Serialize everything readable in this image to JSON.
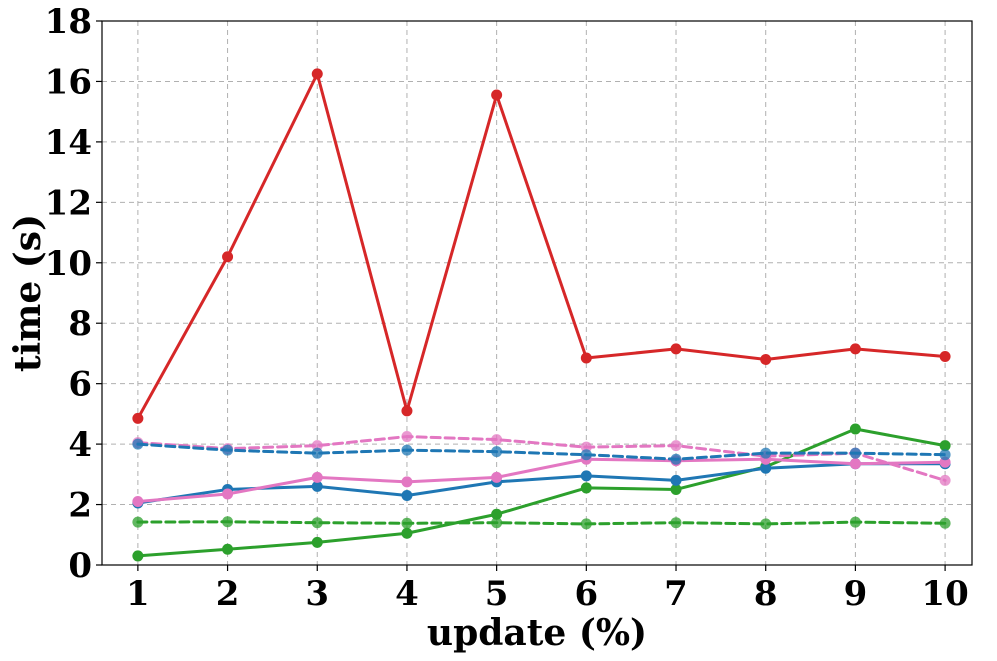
{
  "chart_data": {
    "type": "line",
    "title": "",
    "xlabel": "update (%)",
    "ylabel": "time (s)",
    "x": [
      1,
      2,
      3,
      4,
      5,
      6,
      7,
      8,
      9,
      10
    ],
    "xlim": [
      0.6,
      10.3
    ],
    "ylim": [
      0,
      18
    ],
    "yticks": [
      0,
      2,
      4,
      6,
      8,
      10,
      12,
      14,
      16,
      18
    ],
    "grid": true,
    "legend": "none",
    "series": [
      {
        "color": "#d62728",
        "dashed": false,
        "values": [
          4.85,
          10.2,
          16.25,
          5.1,
          15.55,
          6.85,
          7.15,
          6.8,
          7.15,
          6.9
        ]
      },
      {
        "color": "#2ca02c",
        "dashed": false,
        "values": [
          0.3,
          0.52,
          0.75,
          1.05,
          1.68,
          2.55,
          2.5,
          3.25,
          4.5,
          3.95
        ]
      },
      {
        "color": "#1f77b4",
        "dashed": false,
        "values": [
          2.05,
          2.5,
          2.6,
          2.3,
          2.75,
          2.95,
          2.8,
          3.2,
          3.35,
          3.35
        ]
      },
      {
        "color": "#e377c2",
        "dashed": false,
        "values": [
          2.1,
          2.35,
          2.9,
          2.75,
          2.9,
          3.5,
          3.45,
          3.5,
          3.35,
          3.4
        ]
      },
      {
        "color": "#e377c2",
        "dashed": true,
        "values": [
          4.05,
          3.85,
          3.95,
          4.25,
          4.15,
          3.9,
          3.95,
          3.6,
          3.7,
          2.8
        ]
      },
      {
        "color": "#1f77b4",
        "dashed": true,
        "values": [
          4.0,
          3.8,
          3.7,
          3.8,
          3.75,
          3.65,
          3.5,
          3.7,
          3.7,
          3.65
        ]
      },
      {
        "color": "#2ca02c",
        "dashed": true,
        "values": [
          1.42,
          1.43,
          1.4,
          1.38,
          1.4,
          1.36,
          1.4,
          1.36,
          1.42,
          1.38
        ]
      }
    ]
  }
}
